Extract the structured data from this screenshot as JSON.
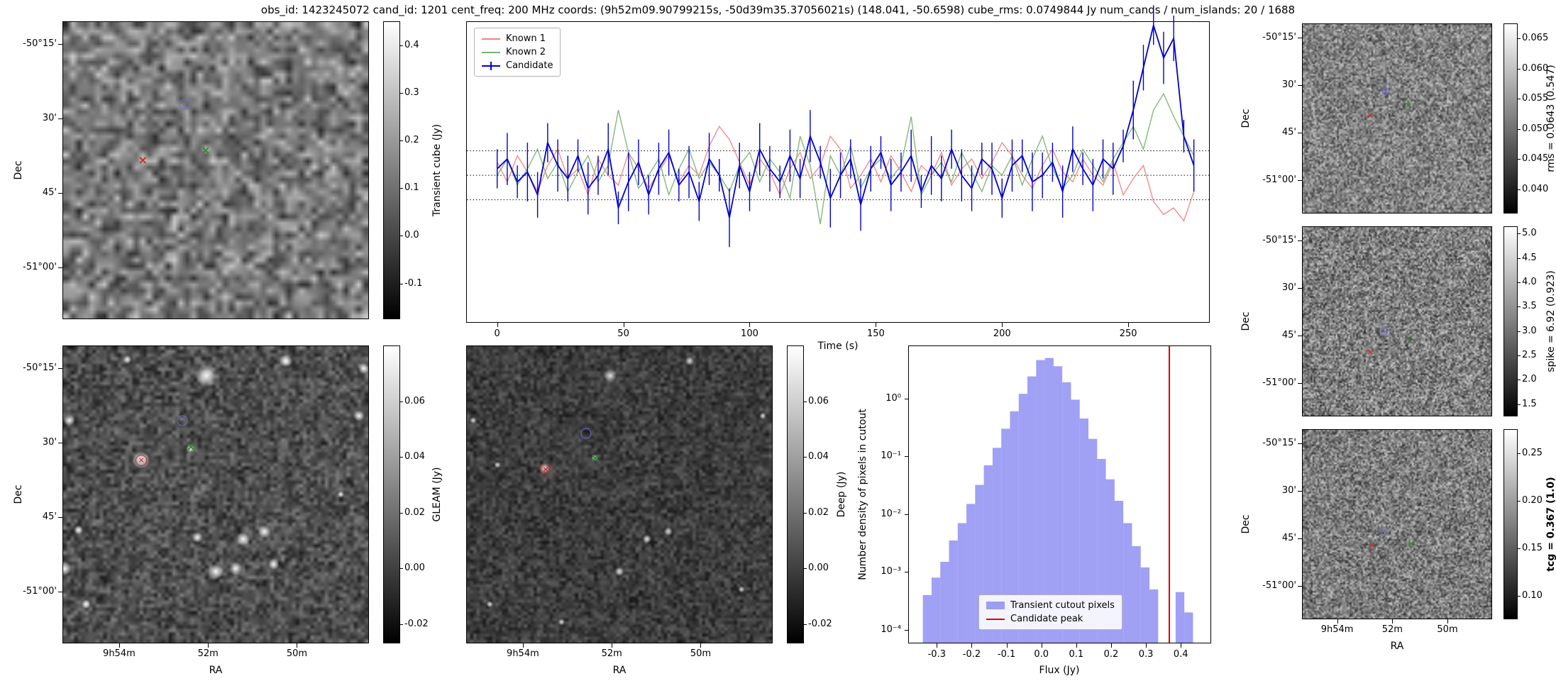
{
  "title": "obs_id: 1423245072 cand_id: 1201 cent_freq: 200 MHz coords: (9h52m09.90799215s, -50d39m35.37056021s) (148.041, -50.6598) cube_rms: 0.0749844 Jy num_cands / num_islands: 20 / 1688",
  "panels": {
    "transient_cube": {
      "ylabel": "Dec",
      "dec_ticks": [
        "-50°15'",
        "30'",
        "45'",
        "-51°00'"
      ],
      "colorbar": {
        "label": "Transient cube (Jy)",
        "vmin": -0.175,
        "vmax": 0.45,
        "tick_values": [
          0.4,
          0.3,
          0.2,
          0.1,
          0.0,
          -0.1
        ],
        "tick_labels": [
          "0.4",
          "0.3",
          "0.2",
          "0.1",
          "0.0",
          "-0.1"
        ]
      },
      "markers": [
        {
          "name": "candidate-marker",
          "shape": "circle",
          "color": "#6b6be0",
          "fx": 0.395,
          "fy": 0.275
        },
        {
          "name": "known1-marker",
          "shape": "x",
          "color": "#cc2a2a",
          "fx": 0.26,
          "fy": 0.465
        },
        {
          "name": "known2-marker",
          "shape": "x",
          "color": "#2e8b2e",
          "fx": 0.465,
          "fy": 0.43
        }
      ]
    },
    "gleam": {
      "ylabel": "Dec",
      "xlabel": "RA",
      "dec_ticks": [
        "-50°15'",
        "30'",
        "45'",
        "-51°00'"
      ],
      "ra_ticks": [
        "9h54m",
        "52m",
        "50m"
      ],
      "colorbar": {
        "label": "GLEAM (Jy)",
        "vmin": -0.027,
        "vmax": 0.08,
        "tick_values": [
          0.06,
          0.04,
          0.02,
          0.0,
          -0.02
        ],
        "tick_labels": [
          "0.06",
          "0.04",
          "0.02",
          "0.00",
          "-0.02"
        ]
      },
      "markers": [
        {
          "name": "candidate-marker",
          "shape": "circle",
          "color": "#6b6be0",
          "fx": 0.39,
          "fy": 0.25
        },
        {
          "name": "known1-marker",
          "shape": "circle-x",
          "color": "#cc2a2a",
          "fx": 0.255,
          "fy": 0.383
        },
        {
          "name": "known2-marker",
          "shape": "x",
          "color": "#2e8b2e",
          "fx": 0.417,
          "fy": 0.338
        }
      ],
      "sources": [
        [
          0.47,
          0.1,
          10
        ],
        [
          0.73,
          0.05,
          6
        ],
        [
          0.985,
          0.075,
          5
        ],
        [
          0.21,
          0.045,
          4
        ],
        [
          0.02,
          0.25,
          5
        ],
        [
          0.97,
          0.235,
          5
        ],
        [
          0.255,
          0.383,
          8
        ],
        [
          0.417,
          0.345,
          4
        ],
        [
          0.05,
          0.62,
          4
        ],
        [
          0.44,
          0.645,
          5
        ],
        [
          0.59,
          0.65,
          6
        ],
        [
          0.66,
          0.625,
          6
        ],
        [
          0.005,
          0.75,
          6
        ],
        [
          0.5,
          0.76,
          7
        ],
        [
          0.565,
          0.75,
          6
        ],
        [
          0.69,
          0.735,
          5
        ],
        [
          0.075,
          0.87,
          4
        ],
        [
          0.91,
          0.5,
          3
        ]
      ]
    },
    "deep": {
      "xlabel": "RA",
      "ra_ticks": [
        "9h54m",
        "52m",
        "50m"
      ],
      "colorbar": {
        "label": "Deep (Jy)",
        "vmin": -0.027,
        "vmax": 0.08,
        "tick_values": [
          0.06,
          0.04,
          0.02,
          0.0,
          -0.02
        ],
        "tick_labels": [
          "0.06",
          "0.04",
          "0.02",
          "0.00",
          "-0.02"
        ]
      },
      "markers": [
        {
          "name": "candidate-marker",
          "shape": "circle",
          "color": "#6b6be0",
          "fx": 0.39,
          "fy": 0.293
        },
        {
          "name": "known1-marker",
          "shape": "circle-x",
          "color": "#cc2a2a",
          "fx": 0.257,
          "fy": 0.412
        },
        {
          "name": "known2-marker",
          "shape": "x",
          "color": "#2e8b2e",
          "fx": 0.419,
          "fy": 0.376
        }
      ],
      "sources": [
        [
          0.47,
          0.1,
          6
        ],
        [
          0.73,
          0.05,
          4
        ],
        [
          0.255,
          0.412,
          5
        ],
        [
          0.59,
          0.65,
          4
        ],
        [
          0.66,
          0.625,
          4
        ],
        [
          0.5,
          0.76,
          4
        ],
        [
          0.02,
          0.25,
          3
        ],
        [
          0.97,
          0.235,
          3
        ],
        [
          0.419,
          0.376,
          3
        ],
        [
          0.075,
          0.87,
          3
        ],
        [
          0.9,
          0.82,
          3
        ],
        [
          0.31,
          0.93,
          3
        ],
        [
          0.1,
          0.4,
          3
        ]
      ]
    },
    "rms_map": {
      "ylabel": "Dec",
      "dec_ticks": [
        "-50°15'",
        "30'",
        "45'",
        "-51°00'"
      ],
      "colorbar": {
        "label": "rms = 0.0643 (0.547)",
        "vmin": 0.036,
        "vmax": 0.0675,
        "tick_values": [
          0.065,
          0.06,
          0.055,
          0.05,
          0.045,
          0.04
        ],
        "tick_labels": [
          "0.065",
          "0.060",
          "0.055",
          "0.050",
          "0.045",
          "0.040"
        ]
      },
      "markers": [
        {
          "name": "candidate-marker",
          "shape": "circle",
          "color": "#6b6be0",
          "fx": 0.435,
          "fy": 0.355
        },
        {
          "name": "known1-marker",
          "shape": "x",
          "color": "#cc2a2a",
          "fx": 0.355,
          "fy": 0.48
        },
        {
          "name": "known2-marker",
          "shape": "x",
          "color": "#2e8b2e",
          "fx": 0.555,
          "fy": 0.43
        }
      ]
    },
    "spike_map": {
      "ylabel": "Dec",
      "dec_ticks": [
        "-50°15'",
        "30'",
        "45'",
        "-51°00'"
      ],
      "colorbar": {
        "label": "spike = 6.92 (0.923)",
        "vmin": 1.25,
        "vmax": 5.15,
        "tick_values": [
          5.0,
          4.5,
          4.0,
          3.5,
          3.0,
          2.5,
          2.0,
          1.5
        ],
        "tick_labels": [
          "5.0",
          "4.5",
          "4.0",
          "3.5",
          "3.0",
          "2.5",
          "2.0",
          "1.5"
        ]
      },
      "markers": [
        {
          "name": "candidate-marker",
          "shape": "circle",
          "color": "#6b6be0",
          "fx": 0.43,
          "fy": 0.55
        },
        {
          "name": "known1-marker",
          "shape": "x",
          "color": "#cc2a2a",
          "fx": 0.355,
          "fy": 0.66
        },
        {
          "name": "known2-marker",
          "shape": "x",
          "color": "#2e8b2e",
          "fx": 0.56,
          "fy": 0.59
        }
      ]
    },
    "tcg_map": {
      "ylabel": "Dec",
      "xlabel": "RA",
      "dec_ticks": [
        "-50°15'",
        "30'",
        "45'",
        "-51°00'"
      ],
      "ra_ticks": [
        "9h54m",
        "52m",
        "50m"
      ],
      "colorbar": {
        "label": "tcg = 0.367 (1.0)",
        "bold": true,
        "vmin": 0.075,
        "vmax": 0.275,
        "tick_values": [
          0.25,
          0.2,
          0.15,
          0.1
        ],
        "tick_labels": [
          "0.25",
          "0.20",
          "0.15",
          "0.10"
        ]
      },
      "markers": [
        {
          "name": "candidate-marker",
          "shape": "circle",
          "color": "#6b6be0",
          "fx": 0.43,
          "fy": 0.53
        },
        {
          "name": "known1-marker",
          "shape": "x",
          "color": "#cc2a2a",
          "fx": 0.365,
          "fy": 0.61
        },
        {
          "name": "known2-marker",
          "shape": "x",
          "color": "#2e8b2e",
          "fx": 0.57,
          "fy": 0.6
        }
      ]
    }
  },
  "chart_data": [
    {
      "type": "line",
      "xlabel": "Time (s)",
      "xlim": [
        -12,
        282
      ],
      "ylim": [
        -0.45,
        0.47
      ],
      "xticks": [
        0,
        50,
        100,
        150,
        200,
        250
      ],
      "hlines": [
        0.075,
        0.0,
        -0.075
      ],
      "x": [
        0,
        4,
        8,
        12,
        16,
        20,
        24,
        28,
        32,
        36,
        40,
        44,
        48,
        52,
        56,
        60,
        64,
        68,
        72,
        76,
        80,
        84,
        88,
        92,
        96,
        100,
        104,
        108,
        112,
        116,
        120,
        124,
        128,
        132,
        136,
        140,
        144,
        148,
        152,
        156,
        160,
        164,
        168,
        172,
        176,
        180,
        184,
        188,
        192,
        196,
        200,
        204,
        208,
        212,
        216,
        220,
        224,
        228,
        232,
        236,
        240,
        244,
        248,
        252,
        256,
        260,
        264,
        268,
        272,
        276
      ],
      "series": [
        {
          "name": "Known 1",
          "color": "#f08080",
          "values": [
            0.04,
            -0.02,
            0.06,
            0.01,
            -0.05,
            0.03,
            0.08,
            -0.01,
            0.02,
            -0.06,
            0.05,
            0.0,
            -0.03,
            0.07,
            0.02,
            -0.04,
            0.01,
            0.06,
            -0.02,
            0.03,
            0.0,
            0.09,
            0.15,
            0.11,
            0.04,
            -0.03,
            0.05,
            0.01,
            -0.06,
            0.02,
            0.07,
            -0.01,
            0.03,
            0.12,
            0.08,
            -0.04,
            0.0,
            0.05,
            -0.02,
            0.06,
            0.01,
            -0.05,
            0.03,
            0.0,
            0.07,
            -0.03,
            0.02,
            0.05,
            -0.01,
            0.04,
            0.1,
            0.06,
            0.0,
            -0.04,
            0.03,
            0.08,
            0.01,
            -0.02,
            0.05,
            0.0,
            -0.03,
            0.04,
            -0.06,
            -0.01,
            0.03,
            -0.08,
            -0.12,
            -0.1,
            -0.14,
            -0.05
          ]
        },
        {
          "name": "Known 2",
          "color": "#74b26e",
          "values": [
            0.0,
            0.05,
            -0.03,
            0.02,
            0.08,
            -0.01,
            0.04,
            -0.05,
            0.01,
            0.06,
            -0.02,
            0.03,
            0.2,
            0.07,
            -0.04,
            0.0,
            0.05,
            -0.06,
            0.02,
            0.08,
            -0.01,
            0.04,
            0.0,
            -0.05,
            0.03,
            0.07,
            -0.02,
            0.05,
            0.01,
            -0.07,
            0.12,
            0.03,
            -0.15,
            0.06,
            0.0,
            0.09,
            -0.04,
            0.02,
            0.05,
            -0.01,
            0.03,
            0.18,
            -0.06,
            0.0,
            0.04,
            -0.02,
            0.07,
            0.01,
            -0.05,
            0.03,
            0.0,
            0.06,
            -0.03,
            0.05,
            0.12,
            0.02,
            -0.04,
            0.0,
            0.08,
            0.03,
            -0.02,
            0.05,
            0.1,
            0.15,
            0.08,
            0.2,
            0.25,
            0.18,
            0.12,
            0.06
          ]
        },
        {
          "name": "Candidate",
          "color": "#0000cd",
          "values": [
            0.02,
            0.05,
            -0.02,
            0.01,
            -0.06,
            0.1,
            0.03,
            -0.01,
            0.06,
            -0.04,
            0.0,
            0.08,
            -0.1,
            -0.02,
            0.04,
            -0.06,
            0.02,
            0.07,
            -0.03,
            0.01,
            -0.08,
            0.05,
            0.0,
            -0.13,
            0.03,
            -0.05,
            0.08,
            0.02,
            -0.02,
            0.06,
            -0.01,
            0.12,
            0.04,
            -0.07,
            0.0,
            0.05,
            -0.09,
            0.02,
            0.07,
            -0.03,
            0.01,
            0.06,
            -0.05,
            0.03,
            -0.01,
            0.08,
            0.0,
            -0.04,
            0.05,
            0.02,
            -0.07,
            0.03,
            0.06,
            -0.02,
            0.0,
            0.04,
            -0.05,
            0.08,
            0.02,
            -0.03,
            0.05,
            0.02,
            0.09,
            0.2,
            0.33,
            0.46,
            0.36,
            0.42,
            0.12,
            0.03
          ],
          "errors": [
            0.06,
            0.08,
            0.05,
            0.09,
            0.07,
            0.06,
            0.08,
            0.07,
            0.05,
            0.08,
            0.06,
            0.08,
            0.05,
            0.09,
            0.07,
            0.06,
            0.08,
            0.07,
            0.05,
            0.08,
            0.06,
            0.08,
            0.05,
            0.09,
            0.07,
            0.06,
            0.08,
            0.07,
            0.05,
            0.08,
            0.06,
            0.08,
            0.05,
            0.09,
            0.07,
            0.06,
            0.08,
            0.07,
            0.05,
            0.08,
            0.06,
            0.08,
            0.05,
            0.09,
            0.07,
            0.06,
            0.08,
            0.07,
            0.05,
            0.08,
            0.06,
            0.08,
            0.05,
            0.09,
            0.07,
            0.06,
            0.08,
            0.07,
            0.05,
            0.08,
            0.06,
            0.08,
            0.05,
            0.09,
            0.07,
            0.06,
            0.08,
            0.07,
            0.05,
            0.08
          ]
        }
      ]
    },
    {
      "type": "bar",
      "xlabel": "Flux (Jy)",
      "ylabel": "Number density of pixels in cutout",
      "xlim": [
        -0.38,
        0.485
      ],
      "ylim": [
        6e-05,
        8
      ],
      "bin_width": 0.025,
      "bar_color": "#7b7bf0",
      "line_color": "#dd0000",
      "candidate_peak": 0.367,
      "legend": [
        "Transient cutout pixels",
        "Candidate peak"
      ],
      "xticks": [
        -0.3,
        -0.2,
        -0.1,
        0.0,
        0.1,
        0.2,
        0.3,
        0.4
      ],
      "yticks": [
        {
          "v": 1,
          "label": "10⁰"
        },
        {
          "v": 0.1,
          "label": "10⁻¹"
        },
        {
          "v": 0.01,
          "label": "10⁻²"
        },
        {
          "v": 0.001,
          "label": "10⁻³"
        },
        {
          "v": 0.0001,
          "label": "10⁻⁴"
        }
      ],
      "bins": [
        [
          -0.34,
          0.0004
        ],
        [
          -0.315,
          0.0008
        ],
        [
          -0.29,
          0.0015
        ],
        [
          -0.265,
          0.0035
        ],
        [
          -0.24,
          0.007
        ],
        [
          -0.215,
          0.015
        ],
        [
          -0.19,
          0.032
        ],
        [
          -0.165,
          0.07
        ],
        [
          -0.14,
          0.14
        ],
        [
          -0.115,
          0.3
        ],
        [
          -0.09,
          0.6
        ],
        [
          -0.065,
          1.2
        ],
        [
          -0.04,
          2.4
        ],
        [
          -0.015,
          4.6
        ],
        [
          0.01,
          5.0
        ],
        [
          0.035,
          3.6
        ],
        [
          0.06,
          1.9
        ],
        [
          0.085,
          0.95
        ],
        [
          0.11,
          0.45
        ],
        [
          0.135,
          0.2
        ],
        [
          0.16,
          0.09
        ],
        [
          0.185,
          0.04
        ],
        [
          0.21,
          0.017
        ],
        [
          0.235,
          0.007
        ],
        [
          0.26,
          0.0028
        ],
        [
          0.285,
          0.0012
        ],
        [
          0.31,
          0.0005
        ],
        [
          0.385,
          0.00045
        ],
        [
          0.41,
          0.0002
        ]
      ]
    }
  ]
}
